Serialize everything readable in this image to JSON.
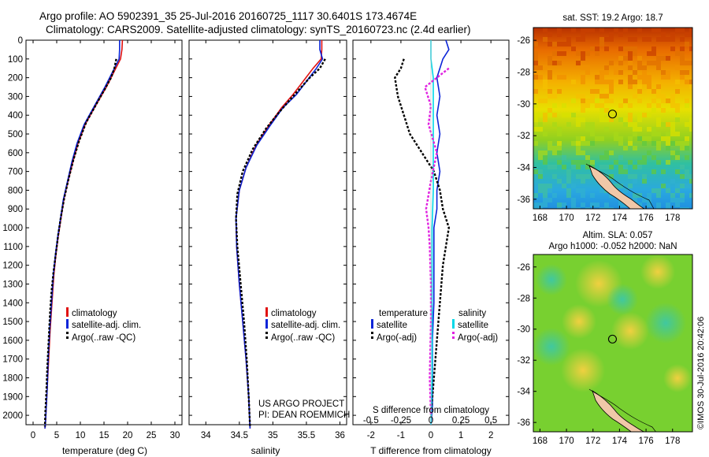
{
  "header": {
    "line1": "Argo profile: AO 5902391_35 25-Jul-2016 20160725_1117 30.6401S 173.4674E",
    "line2": "Climatology: CARS2009. Satellite-adjusted climatology: synTS_20160723.nc (2.4d earlier)"
  },
  "colors": {
    "climatology": "#e01010",
    "satellite": "#0a24d8",
    "argo": "#000000",
    "salinity_sat": "#00d8e8",
    "argo_sal": "#e020e0"
  },
  "chart_data": [
    {
      "type": "line",
      "name": "temperature-profile",
      "xlabel": "temperature (deg C)",
      "ylabel": "",
      "xlim": [
        -1.5,
        31.5
      ],
      "ylim": [
        2050,
        0
      ],
      "xticks": [
        0,
        5,
        10,
        15,
        20,
        25,
        30
      ],
      "yticks": [
        0,
        100,
        200,
        300,
        400,
        500,
        600,
        700,
        800,
        900,
        1000,
        1100,
        1200,
        1300,
        1400,
        1500,
        1600,
        1700,
        1800,
        1900,
        2000
      ],
      "legend": {
        "placement": "lower-center",
        "entries": [
          "climatology",
          "satellite-adj. clim.",
          "Argo(..raw -QC)"
        ]
      },
      "series": [
        {
          "name": "climatology",
          "x": [
            18.9,
            18.8,
            18.5,
            17.5,
            15.5,
            13.2,
            11.0,
            9.5,
            8.4,
            7.4,
            6.5,
            5.9,
            5.3,
            4.8,
            4.4,
            4.0,
            3.6,
            3.3,
            3.0,
            2.8,
            2.6,
            2.5
          ],
          "y": [
            0,
            50,
            100,
            150,
            250,
            350,
            450,
            550,
            650,
            750,
            850,
            950,
            1050,
            1150,
            1250,
            1400,
            1550,
            1700,
            1850,
            1950,
            2050,
            2070
          ]
        },
        {
          "name": "satellite-adj. clim.",
          "x": [
            18.3,
            18.3,
            18.2,
            17.2,
            15.2,
            13.0,
            10.8,
            9.3,
            8.2,
            7.3,
            6.4,
            5.8,
            5.2,
            4.7,
            4.3,
            3.9,
            3.5,
            3.2,
            3.0,
            2.8,
            2.6,
            2.5
          ],
          "y": [
            0,
            50,
            100,
            150,
            250,
            350,
            450,
            550,
            650,
            750,
            850,
            950,
            1050,
            1150,
            1250,
            1400,
            1550,
            1700,
            1850,
            1950,
            2050,
            2070
          ]
        },
        {
          "name": "Argo(..raw -QC)",
          "x": [
            17.6,
            17.2,
            16.5,
            15.2,
            13.4,
            11.2,
            9.7,
            8.5,
            7.5,
            6.6,
            5.9,
            5.3,
            4.8,
            4.3,
            3.9,
            3.6,
            3.3,
            3.0,
            2.8,
            2.6,
            2.5
          ],
          "y": [
            100,
            150,
            200,
            260,
            340,
            440,
            540,
            640,
            740,
            840,
            940,
            1040,
            1140,
            1240,
            1340,
            1450,
            1600,
            1750,
            1880,
            1980,
            2060
          ]
        }
      ]
    },
    {
      "type": "line",
      "name": "salinity-profile",
      "xlabel": "salinity",
      "ylabel": "",
      "xlim": [
        33.75,
        36.1
      ],
      "ylim": [
        2050,
        0
      ],
      "xticks": [
        34,
        34.5,
        35,
        35.5,
        36
      ],
      "xticklabels": [
        "34",
        "34.5",
        "35",
        "35.5",
        "36"
      ],
      "legend": {
        "placement": "lower-right",
        "entries": [
          "climatology",
          "satellite-adj. clim.",
          "Argo(..raw -QC)"
        ]
      },
      "annotations": [
        "US ARGO PROJECT",
        "PI: DEAN ROEMMICH"
      ],
      "series": [
        {
          "name": "climatology",
          "x": [
            35.73,
            35.73,
            35.72,
            35.6,
            35.45,
            35.3,
            35.13,
            34.95,
            34.75,
            34.6,
            34.5,
            34.45,
            34.46,
            34.5,
            34.55,
            34.6,
            34.64,
            34.66
          ],
          "y": [
            0,
            50,
            100,
            150,
            220,
            290,
            360,
            450,
            560,
            680,
            800,
            950,
            1100,
            1300,
            1500,
            1700,
            1900,
            2070
          ]
        },
        {
          "name": "satellite-adj. clim.",
          "x": [
            35.7,
            35.7,
            35.74,
            35.65,
            35.5,
            35.35,
            35.15,
            34.97,
            34.76,
            34.6,
            34.5,
            34.45,
            34.46,
            34.5,
            34.55,
            34.6,
            34.64,
            34.66
          ],
          "y": [
            0,
            50,
            100,
            150,
            220,
            290,
            360,
            450,
            560,
            680,
            800,
            950,
            1100,
            1300,
            1500,
            1700,
            1900,
            2070
          ]
        },
        {
          "name": "Argo(..raw -QC)",
          "x": [
            35.78,
            35.7,
            35.55,
            35.4,
            35.25,
            35.08,
            34.9,
            34.7,
            34.55,
            34.47,
            34.45,
            34.47,
            34.52,
            34.57,
            34.61,
            34.64,
            34.66
          ],
          "y": [
            100,
            150,
            200,
            260,
            320,
            390,
            470,
            580,
            700,
            820,
            950,
            1100,
            1300,
            1500,
            1700,
            1900,
            2060
          ]
        }
      ]
    },
    {
      "type": "line",
      "name": "difference-profile",
      "xlabel": "T difference from climatology",
      "xlabel_top": "S difference from climatology",
      "xlim": [
        -2.6,
        2.6
      ],
      "ylim": [
        2050,
        0
      ],
      "xticks": [
        -2,
        -1,
        0,
        1,
        2
      ],
      "xticks_top": [
        "-0.5",
        "-0.25",
        "0",
        "0.25",
        "0.5"
      ],
      "legend": {
        "placement": "lower-center",
        "temperature_title": "temperature",
        "salinity_title": "salinity",
        "entries": [
          "satellite",
          "Argo(-adj)",
          "satellite",
          "Argo(-adj)"
        ]
      },
      "series": [
        {
          "name": "temperature satellite",
          "x": [
            0.5,
            0.6,
            0.4,
            0.2,
            0.3,
            0.2,
            0.3,
            0.2,
            0.3,
            0.2,
            0.2,
            0.1,
            0.1,
            0.1,
            0.05,
            0.05,
            0.05,
            0.0
          ],
          "y": [
            0,
            50,
            100,
            200,
            300,
            400,
            500,
            600,
            700,
            800,
            900,
            1000,
            1200,
            1400,
            1600,
            1800,
            1950,
            2050
          ]
        },
        {
          "name": "temperature Argo(-adj)",
          "x": [
            -0.9,
            -1.0,
            -1.2,
            -1.1,
            -0.9,
            -0.7,
            -0.3,
            0.1,
            0.3,
            0.4,
            0.6,
            0.5,
            0.4,
            0.3,
            0.2,
            0.1,
            0.0
          ],
          "y": [
            100,
            150,
            200,
            300,
            400,
            500,
            600,
            700,
            800,
            900,
            1000,
            1100,
            1200,
            1400,
            1600,
            1800,
            2000
          ]
        },
        {
          "name": "salinity satellite",
          "x": [
            0.0,
            0.0,
            0.02,
            0.02,
            0.02,
            0.02,
            0.01,
            0.01,
            0.01,
            0.01,
            0.0
          ],
          "y": [
            0,
            100,
            200,
            400,
            600,
            800,
            1000,
            1200,
            1500,
            1800,
            2050
          ]
        },
        {
          "name": "salinity Argo(-adj)",
          "x": [
            0.15,
            -0.05,
            0.0,
            -0.02,
            0.05,
            0.0,
            -0.04,
            -0.02,
            -0.01,
            0.0,
            0.0,
            -0.01,
            0.0
          ],
          "y": [
            150,
            250,
            350,
            450,
            600,
            750,
            900,
            1000,
            1100,
            1300,
            1500,
            1800,
            2000
          ]
        }
      ]
    },
    {
      "type": "heatmap",
      "name": "sst-map",
      "title": "sat. SST: 19.2  Argo: 18.7",
      "xlim": [
        167.5,
        179.5
      ],
      "ylim": [
        -36.6,
        -25.2
      ],
      "xticks": [
        168,
        170,
        172,
        174,
        176,
        178
      ],
      "yticks": [
        -26,
        -28,
        -30,
        -32,
        -34,
        -36
      ],
      "marker": {
        "lon": 173.4674,
        "lat": -30.6401
      }
    },
    {
      "type": "heatmap",
      "name": "sla-map",
      "title": "Altim. SLA: 0.057",
      "subtitle": "Argo h1000: -0.052 h2000: NaN",
      "xlim": [
        167.5,
        179.5
      ],
      "ylim": [
        -36.6,
        -25.2
      ],
      "xticks": [
        168,
        170,
        172,
        174,
        176,
        178
      ],
      "yticks": [
        -26,
        -28,
        -30,
        -32,
        -34,
        -36
      ],
      "marker": {
        "lon": 173.4674,
        "lat": -30.6401
      }
    }
  ],
  "credit": "©IMOS 30-Jul-2016 20:42:06"
}
